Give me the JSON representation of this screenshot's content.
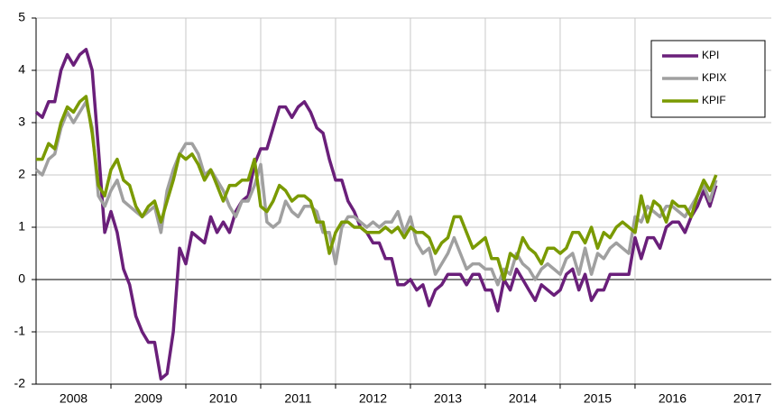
{
  "chart_data": {
    "type": "line",
    "x": [
      2008,
      2008.083,
      2008.167,
      2008.25,
      2008.333,
      2008.417,
      2008.5,
      2008.583,
      2008.667,
      2008.75,
      2008.833,
      2008.917,
      2009,
      2009.083,
      2009.167,
      2009.25,
      2009.333,
      2009.417,
      2009.5,
      2009.583,
      2009.667,
      2009.75,
      2009.833,
      2009.917,
      2010,
      2010.083,
      2010.167,
      2010.25,
      2010.333,
      2010.417,
      2010.5,
      2010.583,
      2010.667,
      2010.75,
      2010.833,
      2010.917,
      2011,
      2011.083,
      2011.167,
      2011.25,
      2011.333,
      2011.417,
      2011.5,
      2011.583,
      2011.667,
      2011.75,
      2011.833,
      2011.917,
      2012,
      2012.083,
      2012.167,
      2012.25,
      2012.333,
      2012.417,
      2012.5,
      2012.583,
      2012.667,
      2012.75,
      2012.833,
      2012.917,
      2013,
      2013.083,
      2013.167,
      2013.25,
      2013.333,
      2013.417,
      2013.5,
      2013.583,
      2013.667,
      2013.75,
      2013.833,
      2013.917,
      2014,
      2014.083,
      2014.167,
      2014.25,
      2014.333,
      2014.417,
      2014.5,
      2014.583,
      2014.667,
      2014.75,
      2014.833,
      2014.917,
      2015,
      2015.083,
      2015.167,
      2015.25,
      2015.333,
      2015.417,
      2015.5,
      2015.583,
      2015.667,
      2015.75,
      2015.833,
      2015.917,
      2016,
      2016.083,
      2016.167,
      2016.25,
      2016.333,
      2016.417,
      2016.5,
      2016.583,
      2016.667,
      2016.75,
      2016.833,
      2016.917,
      2017,
      2017.083
    ],
    "series": [
      {
        "name": "KPI",
        "color": "#6a1f7a",
        "values": [
          3.2,
          3.1,
          3.4,
          3.4,
          4.0,
          4.3,
          4.1,
          4.3,
          4.4,
          4.0,
          2.5,
          0.9,
          1.3,
          0.9,
          0.2,
          -0.1,
          -0.7,
          -1.0,
          -1.2,
          -1.2,
          -1.9,
          -1.8,
          -1.0,
          0.6,
          0.3,
          0.9,
          0.8,
          0.7,
          1.2,
          0.9,
          1.1,
          0.9,
          1.3,
          1.5,
          1.6,
          2.2,
          2.5,
          2.5,
          2.9,
          3.3,
          3.3,
          3.1,
          3.3,
          3.4,
          3.2,
          2.9,
          2.8,
          2.3,
          1.9,
          1.9,
          1.5,
          1.3,
          1.0,
          0.9,
          0.7,
          0.7,
          0.4,
          0.4,
          -0.1,
          -0.1,
          0.0,
          -0.2,
          -0.1,
          -0.5,
          -0.2,
          -0.1,
          0.1,
          0.1,
          0.1,
          -0.1,
          0.1,
          0.1,
          -0.2,
          -0.2,
          -0.6,
          0.0,
          -0.2,
          0.2,
          0.0,
          -0.2,
          -0.4,
          -0.1,
          -0.2,
          -0.3,
          -0.2,
          0.1,
          0.2,
          -0.2,
          0.1,
          -0.4,
          -0.2,
          -0.2,
          0.1,
          0.1,
          0.1,
          0.1,
          0.8,
          0.4,
          0.8,
          0.8,
          0.6,
          1.0,
          1.1,
          1.1,
          0.9,
          1.2,
          1.4,
          1.7,
          1.4,
          1.8
        ]
      },
      {
        "name": "KPIX",
        "color": "#a0a0a0",
        "values": [
          2.1,
          2.0,
          2.3,
          2.4,
          2.9,
          3.2,
          3.0,
          3.2,
          3.4,
          2.9,
          1.6,
          1.4,
          1.7,
          1.9,
          1.5,
          1.4,
          1.3,
          1.2,
          1.3,
          1.4,
          0.9,
          1.7,
          2.1,
          2.4,
          2.6,
          2.6,
          2.4,
          2.0,
          2.1,
          1.9,
          1.7,
          1.4,
          1.2,
          1.5,
          1.5,
          1.8,
          2.2,
          1.1,
          1.0,
          1.1,
          1.5,
          1.3,
          1.2,
          1.4,
          1.4,
          1.3,
          0.9,
          0.9,
          0.3,
          1.0,
          1.2,
          1.2,
          1.1,
          1.0,
          1.1,
          1.0,
          1.1,
          1.1,
          1.3,
          0.9,
          1.2,
          0.7,
          0.5,
          0.6,
          0.1,
          0.3,
          0.5,
          0.8,
          0.5,
          0.2,
          0.3,
          0.3,
          0.2,
          0.2,
          -0.1,
          0.2,
          0.1,
          0.5,
          0.3,
          0.2,
          0.0,
          0.2,
          0.3,
          0.2,
          0.1,
          0.4,
          0.5,
          0.1,
          0.6,
          0.1,
          0.5,
          0.4,
          0.6,
          0.7,
          0.6,
          0.5,
          1.2,
          1.1,
          1.4,
          1.3,
          1.2,
          1.4,
          1.4,
          1.3,
          1.2,
          1.4,
          1.6,
          1.8,
          1.5,
          1.9
        ]
      },
      {
        "name": "KPIF",
        "color": "#7a9a01",
        "values": [
          2.3,
          2.3,
          2.6,
          2.5,
          3.0,
          3.3,
          3.2,
          3.4,
          3.5,
          2.8,
          1.8,
          1.6,
          2.1,
          2.3,
          1.9,
          1.8,
          1.4,
          1.2,
          1.4,
          1.5,
          1.1,
          1.5,
          1.9,
          2.4,
          2.3,
          2.4,
          2.2,
          1.9,
          2.1,
          1.8,
          1.5,
          1.8,
          1.8,
          1.9,
          1.9,
          2.3,
          1.4,
          1.3,
          1.5,
          1.8,
          1.7,
          1.5,
          1.6,
          1.6,
          1.5,
          1.1,
          1.1,
          0.5,
          0.9,
          1.1,
          1.1,
          1.0,
          1.0,
          0.9,
          0.9,
          0.9,
          1.0,
          0.9,
          1.0,
          0.8,
          1.0,
          0.9,
          0.9,
          0.8,
          0.5,
          0.7,
          0.8,
          1.2,
          1.2,
          0.9,
          0.6,
          0.7,
          0.8,
          0.4,
          0.4,
          0.0,
          0.5,
          0.4,
          0.8,
          0.6,
          0.5,
          0.3,
          0.6,
          0.6,
          0.5,
          0.6,
          0.9,
          0.9,
          0.7,
          1.0,
          0.6,
          0.9,
          0.8,
          1.0,
          1.1,
          1.0,
          0.9,
          1.6,
          1.1,
          1.5,
          1.4,
          1.1,
          1.5,
          1.4,
          1.4,
          1.2,
          1.6,
          1.9,
          1.7,
          2.0
        ]
      }
    ],
    "xlim": [
      2008,
      2017.82
    ],
    "xticks": [
      2009,
      2010,
      2011,
      2012,
      2013,
      2014,
      2015,
      2016
    ],
    "x_labels": [
      2008,
      2009,
      2010,
      2011,
      2012,
      2013,
      2014,
      2015,
      2016,
      2017
    ],
    "ylim": [
      -2,
      5
    ],
    "yticks": [
      -2,
      -1,
      0,
      1,
      2,
      3,
      4,
      5
    ],
    "grid": true,
    "legend": "upper right"
  }
}
